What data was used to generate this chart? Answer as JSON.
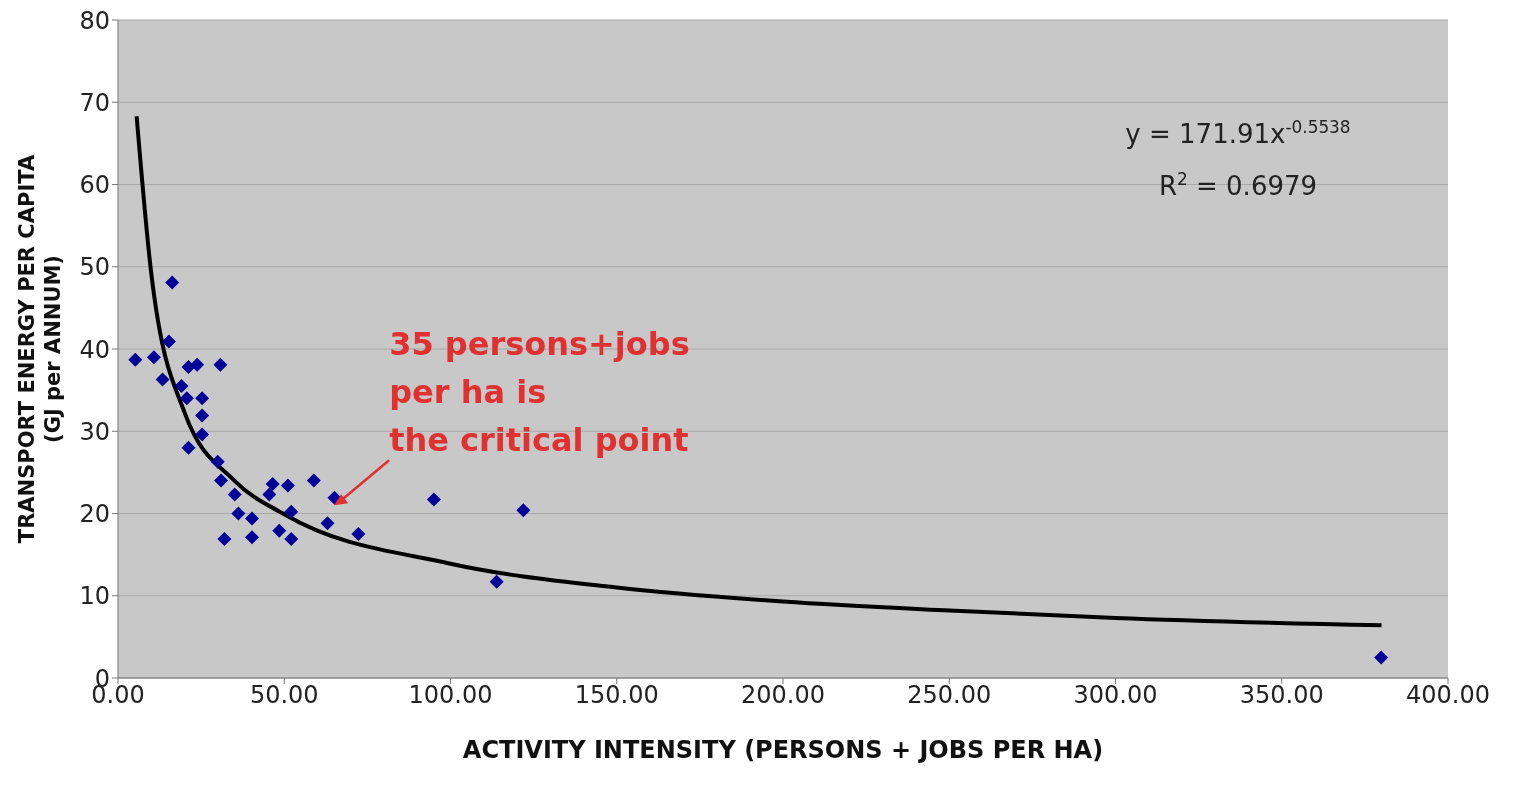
{
  "chart_data": {
    "type": "scatter",
    "xlabel": "ACTIVITY INTENSITY (PERSONS + JOBS PER HA)",
    "ylabel": "TRANSPORT ENERGY PER CAPITA\n(GJ per ANNUM)",
    "xlim": [
      0,
      400
    ],
    "xticks": [
      {
        "value": 0,
        "label": "0.00"
      },
      {
        "value": 50,
        "label": "50.00"
      },
      {
        "value": 100,
        "label": "100.00"
      },
      {
        "value": 150,
        "label": "150.00"
      },
      {
        "value": 200,
        "label": "200.00"
      },
      {
        "value": 250,
        "label": "250.00"
      },
      {
        "value": 300,
        "label": "300.00"
      },
      {
        "value": 350,
        "label": "350.00"
      },
      {
        "value": 400,
        "label": "400.00"
      }
    ],
    "ylim": [
      0,
      80
    ],
    "yticks": [
      0,
      10,
      20,
      30,
      40,
      50,
      60,
      70,
      80
    ],
    "grid": "y",
    "marker": "diamond",
    "series": [
      {
        "type": "scatter",
        "color": "#000099",
        "x": [
          16.3,
          15.3,
          5.2,
          10.8,
          13.4,
          21.2,
          23.8,
          30.8,
          19.1,
          20.7,
          25.3,
          25.3,
          25.3,
          21.2,
          30.0,
          31.0,
          35.1,
          46.5,
          45.5,
          51.1,
          58.9,
          36.2,
          40.3,
          52.1,
          32.0,
          40.3,
          52.1,
          48.5,
          63.0,
          72.3,
          95.0,
          121.9,
          65.1,
          113.9,
          379.9
        ],
        "values": [
          48.1,
          40.9,
          38.7,
          39.0,
          36.3,
          37.8,
          38.1,
          38.1,
          35.5,
          34.0,
          34.0,
          31.9,
          29.6,
          28.0,
          26.3,
          24.0,
          22.3,
          23.6,
          22.3,
          23.4,
          24.0,
          20.0,
          19.4,
          20.2,
          16.9,
          17.1,
          16.9,
          17.9,
          18.8,
          17.5,
          21.7,
          20.4,
          21.9,
          11.7,
          2.5
        ]
      },
      {
        "type": "line",
        "color": "#000000",
        "marker": "none",
        "x": [
          5.6,
          10,
          20,
          35,
          50,
          100,
          150,
          200,
          250,
          300,
          380
        ],
        "values": [
          68.3,
          49.2,
          32.3,
          24.0,
          19.9,
          13.9,
          11.0,
          9.3,
          8.2,
          7.3,
          6.4
        ]
      }
    ],
    "annotations": [
      {
        "text": "35 persons+jobs per ha is the critical point",
        "x": 65,
        "y": 21
      },
      "y = 171.91x$^{-0.5538}$",
      "R$^{2}$ = 0.6979"
    ]
  }
}
